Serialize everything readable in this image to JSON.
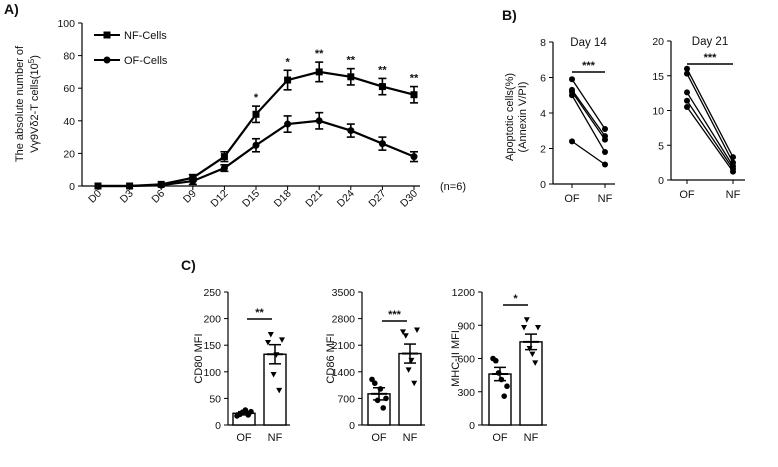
{
  "chart_data": [
    {
      "panel": "A)",
      "type": "line",
      "title": "",
      "xlabel": "",
      "ylabel_lines": [
        "The absolute number of",
        "Vγ9Vδ2-T cells(10",
        "5",
        ")"
      ],
      "categories": [
        "D0",
        "D3",
        "D6",
        "D9",
        "D12",
        "D15",
        "D18",
        "D21",
        "D24",
        "D27",
        "D30"
      ],
      "ylim": [
        0,
        100
      ],
      "yticks": [
        "0",
        "20",
        "40",
        "60",
        "80",
        "100"
      ],
      "n_label": "(n=6)",
      "legend_position": "top-left",
      "series": [
        {
          "name": "NF-Cells",
          "marker": "square",
          "values": [
            0,
            0,
            1,
            5,
            18,
            44,
            65,
            70,
            67,
            61,
            56
          ],
          "errors": [
            0.5,
            0.5,
            1,
            2,
            3,
            5,
            6,
            6,
            5,
            5,
            5
          ]
        },
        {
          "name": "OF-Cells",
          "marker": "circle",
          "values": [
            0,
            0,
            0.5,
            3,
            11,
            25,
            38,
            40,
            34,
            26,
            18
          ],
          "errors": [
            0.5,
            0.5,
            1,
            2,
            2,
            4,
            5,
            5,
            4,
            4,
            3
          ]
        }
      ],
      "significance": [
        "",
        "",
        "",
        "",
        "",
        "*",
        "*",
        "**",
        "**",
        "**",
        "**"
      ]
    },
    {
      "panel": "B)",
      "type": "line",
      "title": "Day 14",
      "ylabel_lines": [
        "Apoptotic cells(%)",
        "(Annexin V/PI)"
      ],
      "categories": [
        "OF",
        "NF"
      ],
      "ylim": [
        0,
        8
      ],
      "yticks": [
        "0",
        "2",
        "4",
        "6",
        "8"
      ],
      "pairs": [
        [
          5.9,
          3.1
        ],
        [
          5.3,
          2.7
        ],
        [
          5.2,
          2.5
        ],
        [
          5.0,
          1.8
        ],
        [
          2.4,
          1.1
        ]
      ],
      "significance": "***"
    },
    {
      "panel": "",
      "type": "line",
      "title": "Day 21",
      "ylabel_lines": [],
      "categories": [
        "OF",
        "NF"
      ],
      "ylim": [
        0,
        20
      ],
      "yticks": [
        "0",
        "5",
        "10",
        "15",
        "20"
      ],
      "pairs": [
        [
          16.0,
          3.3
        ],
        [
          15.3,
          2.5
        ],
        [
          12.6,
          2.0
        ],
        [
          11.4,
          1.6
        ],
        [
          10.5,
          1.2
        ]
      ],
      "significance": "***"
    },
    {
      "panel": "C)",
      "type": "bar",
      "ylabel": "CD80 MFI",
      "categories": [
        "OF",
        "NF"
      ],
      "values": [
        22,
        133
      ],
      "errors": [
        3,
        18
      ],
      "ylim": [
        0,
        250
      ],
      "yticks": [
        "0",
        "50",
        "100",
        "150",
        "200",
        "250"
      ],
      "points": [
        [
          17,
          20,
          24,
          28,
          19,
          25
        ],
        [
          155,
          170,
          95,
          132,
          65,
          160
        ]
      ],
      "significance": "**"
    },
    {
      "panel": "",
      "type": "bar",
      "ylabel": "CD86 MFI",
      "categories": [
        "OF",
        "NF"
      ],
      "values": [
        820,
        1880
      ],
      "errors": [
        160,
        250
      ],
      "ylim": [
        0,
        3500
      ],
      "yticks": [
        "0",
        "700",
        "1400",
        "2100",
        "2800",
        "3500"
      ],
      "points": [
        [
          1200,
          1100,
          650,
          950,
          450,
          700
        ],
        [
          2450,
          2350,
          1450,
          1700,
          1100,
          2500
        ]
      ],
      "significance": "***"
    },
    {
      "panel": "",
      "type": "bar",
      "ylabel": "MHC-II MFI",
      "categories": [
        "OF",
        "NF"
      ],
      "values": [
        460,
        750
      ],
      "errors": [
        60,
        70
      ],
      "ylim": [
        0,
        1200
      ],
      "yticks": [
        "0",
        "300",
        "600",
        "900",
        "1200"
      ],
      "points": [
        [
          600,
          580,
          470,
          410,
          260,
          350
        ],
        [
          880,
          950,
          690,
          640,
          560,
          880
        ]
      ],
      "significance": "*"
    }
  ]
}
